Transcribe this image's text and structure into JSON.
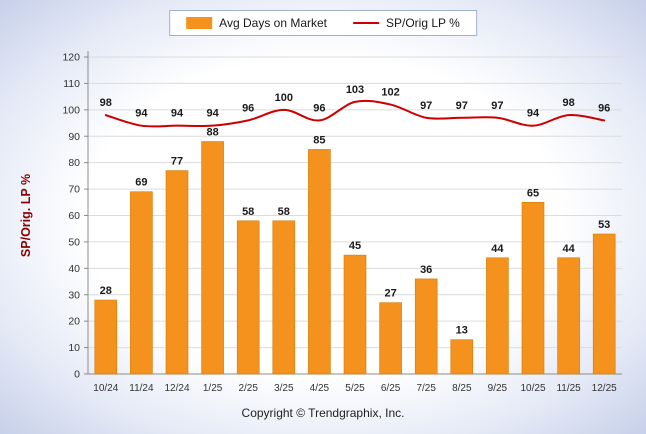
{
  "chart_data": {
    "type": "bar",
    "combo": "bar+line",
    "title": "",
    "categories": [
      "10/24",
      "11/24",
      "12/24",
      "1/25",
      "2/25",
      "3/25",
      "4/25",
      "5/25",
      "6/25",
      "7/25",
      "8/25",
      "9/25",
      "10/25",
      "11/25",
      "12/25"
    ],
    "series": [
      {
        "name": "Avg Days on Market",
        "type": "bar",
        "color": "#F5921E",
        "values": [
          28,
          69,
          77,
          88,
          58,
          58,
          85,
          45,
          27,
          36,
          13,
          44,
          65,
          44,
          53
        ]
      },
      {
        "name": "SP/Orig LP %",
        "type": "line",
        "color": "#CC0000",
        "values": [
          98,
          94,
          94,
          94,
          96,
          100,
          96,
          103,
          102,
          97,
          97,
          97,
          94,
          98,
          96
        ]
      }
    ],
    "xlabel": "",
    "ylabel": "SP/Orig. LP %",
    "ylim": [
      0,
      120
    ],
    "ytick_step": 10,
    "grid": true,
    "legend_position": "top-center"
  },
  "legend": {
    "items": [
      {
        "label": "Avg Days on Market",
        "swatch": "bar",
        "color": "#F5921E"
      },
      {
        "label": "SP/Orig LP %",
        "swatch": "line",
        "color": "#CC0000"
      }
    ]
  },
  "footer": {
    "copyright": "Copyright © Trendgraphix, Inc."
  },
  "colors": {
    "bar": "#F5921E",
    "bar_border": "#D27B00",
    "line": "#CC0000",
    "axis": "#8C8C8C",
    "grid": "#DCDCDC",
    "tick_text": "#333333",
    "value_label": "#1A1A1A",
    "y_axis_title": "#8B0000",
    "background_edge": "#C7D0EA"
  }
}
